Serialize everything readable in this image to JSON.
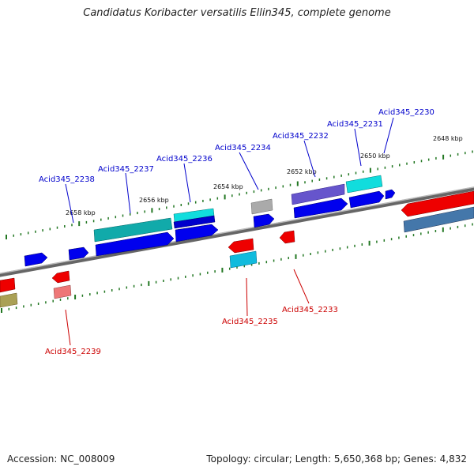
{
  "title": "Candidatus Koribacter versatilis Ellin345, complete genome",
  "accession": "Accession: NC_008009",
  "summary": "Topology: circular; Length: 5,650,368 bp; Genes: 4,832",
  "tick_labels": [
    "2648 kbp",
    "2650 kbp",
    "2652 kbp",
    "2654 kbp",
    "2656 kbp",
    "2658 kbp"
  ],
  "gene_labels": [
    {
      "text": "Acid345_2230",
      "color": "#0000cc"
    },
    {
      "text": "Acid345_2231",
      "color": "#0000cc"
    },
    {
      "text": "Acid345_2232",
      "color": "#0000cc"
    },
    {
      "text": "Acid345_2234",
      "color": "#0000cc"
    },
    {
      "text": "Acid345_2236",
      "color": "#0000cc"
    },
    {
      "text": "Acid345_2237",
      "color": "#0000cc"
    },
    {
      "text": "Acid345_2238",
      "color": "#0000cc"
    },
    {
      "text": "Acid345_2233",
      "color": "#cc0000"
    },
    {
      "text": "Acid345_2235",
      "color": "#cc0000"
    },
    {
      "text": "Acid345_2239",
      "color": "#cc0000"
    }
  ],
  "colors": {
    "forward": "#0000ee",
    "reverse": "#ee0000",
    "cyan": "#11cccc",
    "teal": "#11aaaa",
    "purple": "#6655cc",
    "steel": "#4477aa",
    "olive": "#aaa055",
    "gray": "#aaaaaa",
    "pink": "#ee7777",
    "backbone": "#777777",
    "tick": "#227722"
  }
}
